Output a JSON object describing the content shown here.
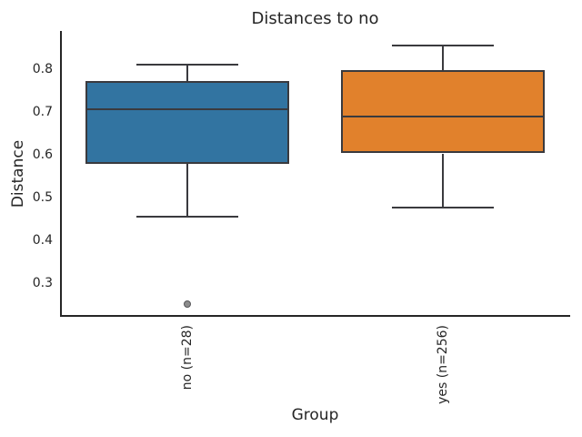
{
  "chart_data": {
    "type": "boxplot",
    "title": "Distances to no",
    "xlabel": "Group",
    "ylabel": "Distance",
    "ylim": [
      0.22,
      0.89
    ],
    "yticks": [
      0.3,
      0.4,
      0.5,
      0.6,
      0.7,
      0.8
    ],
    "grid": false,
    "legend": false,
    "line_color": "#3a3a3e",
    "outlier_color": "#8c8c8c",
    "groups": [
      {
        "label": "no (n=28)",
        "color": "#3274a1",
        "whisker_low": 0.455,
        "q1": 0.578,
        "median": 0.706,
        "q3": 0.773,
        "whisker_high": 0.811,
        "outliers": [
          0.25
        ]
      },
      {
        "label": "yes (n=256)",
        "color": "#e1812c",
        "whisker_low": 0.477,
        "q1": 0.603,
        "median": 0.69,
        "q3": 0.798,
        "whisker_high": 0.856,
        "outliers": []
      }
    ]
  }
}
